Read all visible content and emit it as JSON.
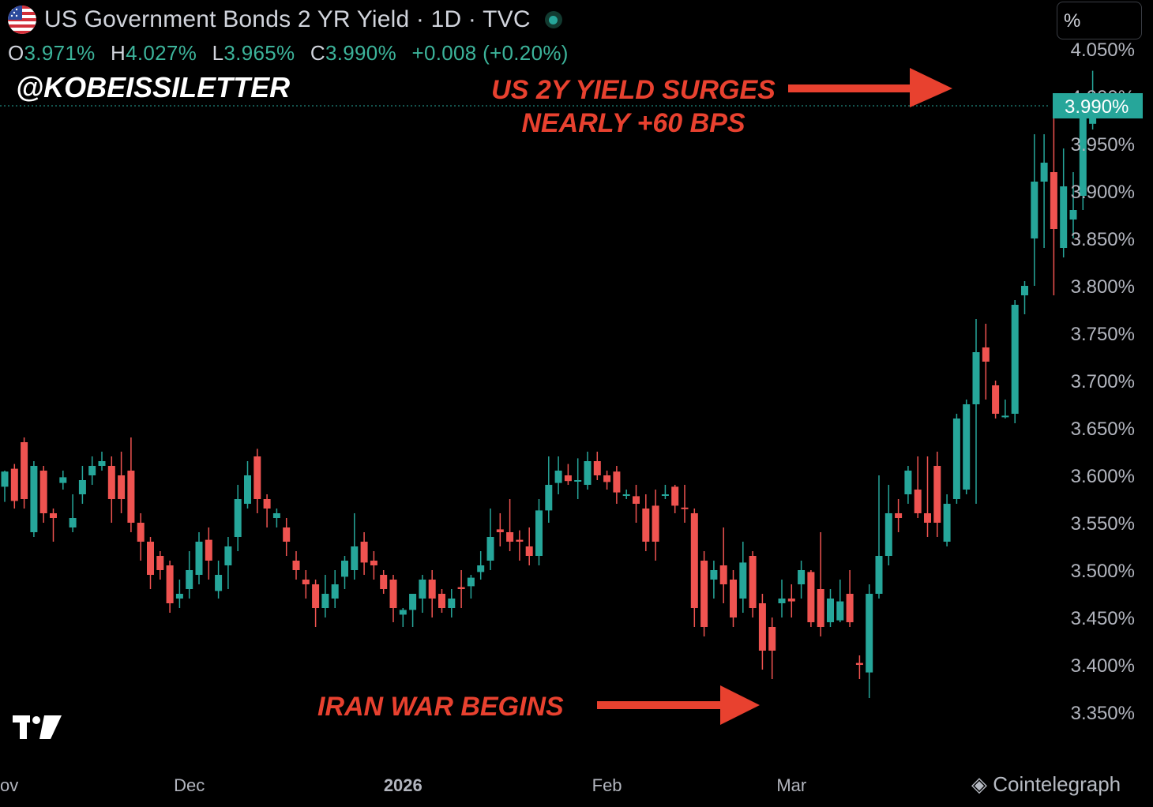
{
  "header": {
    "title": "US Government Bonds 2 YR Yield · 1D · TVC",
    "open_label": "O",
    "open": "3.971%",
    "high_label": "H",
    "high": "4.027%",
    "low_label": "L",
    "low": "3.965%",
    "close_label": "C",
    "close": "3.990%",
    "change": "+0.008 (+0.20%)"
  },
  "handle": "@KOBEISSILETTER",
  "unit_toggle": "%",
  "watermark": "Cointelegraph",
  "colors": {
    "up": "#26a69a",
    "down": "#ef5350",
    "annotation": "#e8412f",
    "price_tag": "#26a69a"
  },
  "chart_data": {
    "type": "candlestick",
    "title": "US Government Bonds 2 YR Yield · 1D · TVC",
    "y_unit": "%",
    "ylim": [
      3.325,
      4.075
    ],
    "y_ticks": [
      "4.050%",
      "4.000%",
      "3.950%",
      "3.900%",
      "3.850%",
      "3.800%",
      "3.750%",
      "3.700%",
      "3.650%",
      "3.600%",
      "3.550%",
      "3.500%",
      "3.450%",
      "3.400%",
      "3.350%"
    ],
    "y_tick_values": [
      4.05,
      4.0,
      3.95,
      3.9,
      3.85,
      3.8,
      3.75,
      3.7,
      3.65,
      3.6,
      3.55,
      3.5,
      3.45,
      3.4,
      3.35
    ],
    "x_labels": [
      {
        "label": "ov",
        "index": 0
      },
      {
        "label": "Dec",
        "index": 19
      },
      {
        "label": "2026",
        "index": 41
      },
      {
        "label": "Feb",
        "index": 62
      },
      {
        "label": "Mar",
        "index": 81
      }
    ],
    "last_price_label": "3.990%",
    "last_price": 3.99,
    "candles": [
      [
        3.588,
        3.604,
        3.572,
        3.605
      ],
      [
        3.607,
        3.573,
        3.565,
        3.612
      ],
      [
        3.635,
        3.575,
        3.565,
        3.64
      ],
      [
        3.54,
        3.61,
        3.535,
        3.615
      ],
      [
        3.605,
        3.56,
        3.55,
        3.61
      ],
      [
        3.56,
        3.555,
        3.53,
        3.565
      ],
      [
        3.592,
        3.598,
        3.585,
        3.605
      ],
      [
        3.545,
        3.555,
        3.54,
        3.58
      ],
      [
        3.58,
        3.595,
        3.57,
        3.61
      ],
      [
        3.6,
        3.61,
        3.59,
        3.62
      ],
      [
        3.61,
        3.615,
        3.605,
        3.625
      ],
      [
        3.61,
        3.575,
        3.55,
        3.62
      ],
      [
        3.6,
        3.575,
        3.56,
        3.625
      ],
      [
        3.605,
        3.55,
        3.54,
        3.64
      ],
      [
        3.55,
        3.53,
        3.51,
        3.56
      ],
      [
        3.53,
        3.495,
        3.48,
        3.535
      ],
      [
        3.515,
        3.5,
        3.49,
        3.52
      ],
      [
        3.505,
        3.465,
        3.455,
        3.51
      ],
      [
        3.47,
        3.475,
        3.46,
        3.49
      ],
      [
        3.48,
        3.5,
        3.47,
        3.52
      ],
      [
        3.495,
        3.53,
        3.485,
        3.54
      ],
      [
        3.532,
        3.51,
        3.49,
        3.545
      ],
      [
        3.478,
        3.495,
        3.47,
        3.51
      ],
      [
        3.505,
        3.525,
        3.48,
        3.535
      ],
      [
        3.535,
        3.575,
        3.52,
        3.59
      ],
      [
        3.57,
        3.6,
        3.565,
        3.615
      ],
      [
        3.62,
        3.575,
        3.56,
        3.628
      ],
      [
        3.575,
        3.565,
        3.545,
        3.58
      ],
      [
        3.555,
        3.56,
        3.545,
        3.565
      ],
      [
        3.545,
        3.53,
        3.515,
        3.555
      ],
      [
        3.51,
        3.5,
        3.49,
        3.52
      ],
      [
        3.49,
        3.485,
        3.47,
        3.5
      ],
      [
        3.485,
        3.46,
        3.44,
        3.49
      ],
      [
        3.46,
        3.475,
        3.45,
        3.495
      ],
      [
        3.47,
        3.485,
        3.46,
        3.5
      ],
      [
        3.493,
        3.51,
        3.48,
        3.515
      ],
      [
        3.5,
        3.525,
        3.49,
        3.56
      ],
      [
        3.53,
        3.508,
        3.495,
        3.54
      ],
      [
        3.51,
        3.505,
        3.49,
        3.52
      ],
      [
        3.495,
        3.48,
        3.475,
        3.5
      ],
      [
        3.49,
        3.46,
        3.445,
        3.495
      ],
      [
        3.453,
        3.458,
        3.44,
        3.46
      ],
      [
        3.458,
        3.475,
        3.44,
        3.475
      ],
      [
        3.47,
        3.49,
        3.455,
        3.495
      ],
      [
        3.49,
        3.47,
        3.45,
        3.5
      ],
      [
        3.475,
        3.46,
        3.455,
        3.48
      ],
      [
        3.46,
        3.47,
        3.45,
        3.48
      ],
      [
        3.482,
        3.48,
        3.46,
        3.5
      ],
      [
        3.483,
        3.492,
        3.47,
        3.495
      ],
      [
        3.498,
        3.505,
        3.49,
        3.52
      ],
      [
        3.51,
        3.535,
        3.5,
        3.565
      ],
      [
        3.543,
        3.54,
        3.525,
        3.56
      ],
      [
        3.54,
        3.53,
        3.52,
        3.575
      ],
      [
        3.532,
        3.53,
        3.51,
        3.542
      ],
      [
        3.525,
        3.515,
        3.505,
        3.545
      ],
      [
        3.515,
        3.563,
        3.505,
        3.575
      ],
      [
        3.563,
        3.59,
        3.55,
        3.62
      ],
      [
        3.592,
        3.605,
        3.58,
        3.62
      ],
      [
        3.6,
        3.594,
        3.59,
        3.612
      ],
      [
        3.594,
        3.595,
        3.575,
        3.618
      ],
      [
        3.59,
        3.615,
        3.585,
        3.625
      ],
      [
        3.615,
        3.6,
        3.595,
        3.625
      ],
      [
        3.6,
        3.593,
        3.585,
        3.605
      ],
      [
        3.604,
        3.582,
        3.57,
        3.61
      ],
      [
        3.58,
        3.58,
        3.575,
        3.585
      ],
      [
        3.578,
        3.57,
        3.55,
        3.59
      ],
      [
        3.565,
        3.53,
        3.52,
        3.58
      ],
      [
        3.568,
        3.53,
        3.51,
        3.585
      ],
      [
        3.58,
        3.58,
        3.575,
        3.59
      ],
      [
        3.588,
        3.568,
        3.56,
        3.59
      ],
      [
        3.566,
        3.565,
        3.55,
        3.59
      ],
      [
        3.56,
        3.46,
        3.44,
        3.565
      ],
      [
        3.51,
        3.44,
        3.43,
        3.52
      ],
      [
        3.49,
        3.5,
        3.47,
        3.51
      ],
      [
        3.505,
        3.485,
        3.465,
        3.545
      ],
      [
        3.49,
        3.45,
        3.44,
        3.5
      ],
      [
        3.47,
        3.508,
        3.455,
        3.53
      ],
      [
        3.515,
        3.46,
        3.45,
        3.52
      ],
      [
        3.465,
        3.415,
        3.395,
        3.475
      ],
      [
        3.44,
        3.415,
        3.385,
        3.45
      ],
      [
        3.465,
        3.47,
        3.45,
        3.49
      ],
      [
        3.47,
        3.467,
        3.45,
        3.485
      ],
      [
        3.485,
        3.5,
        3.47,
        3.51
      ],
      [
        3.498,
        3.445,
        3.44,
        3.5
      ],
      [
        3.48,
        3.44,
        3.43,
        3.54
      ],
      [
        3.445,
        3.47,
        3.44,
        3.48
      ],
      [
        3.447,
        3.467,
        3.445,
        3.49
      ],
      [
        3.475,
        3.445,
        3.44,
        3.5
      ],
      [
        3.402,
        3.4,
        3.385,
        3.41
      ],
      [
        3.392,
        3.475,
        3.365,
        3.485
      ],
      [
        3.475,
        3.515,
        3.47,
        3.6
      ],
      [
        3.515,
        3.56,
        3.505,
        3.59
      ],
      [
        3.56,
        3.555,
        3.54,
        3.575
      ],
      [
        3.58,
        3.605,
        3.57,
        3.61
      ],
      [
        3.585,
        3.56,
        3.555,
        3.62
      ],
      [
        3.56,
        3.55,
        3.535,
        3.62
      ],
      [
        3.61,
        3.55,
        3.535,
        3.625
      ],
      [
        3.53,
        3.57,
        3.525,
        3.58
      ],
      [
        3.575,
        3.66,
        3.57,
        3.665
      ],
      [
        3.585,
        3.675,
        3.58,
        3.68
      ],
      [
        3.675,
        3.73,
        3.57,
        3.765
      ],
      [
        3.735,
        3.72,
        3.68,
        3.76
      ],
      [
        3.695,
        3.665,
        3.66,
        3.7
      ],
      [
        3.662,
        3.663,
        3.66,
        3.68
      ],
      [
        3.665,
        3.78,
        3.655,
        3.785
      ],
      [
        3.79,
        3.8,
        3.77,
        3.805
      ],
      [
        3.85,
        3.91,
        3.8,
        3.96
      ],
      [
        3.91,
        3.93,
        3.84,
        3.96
      ],
      [
        3.92,
        3.86,
        3.79,
        4.0
      ],
      [
        3.84,
        3.905,
        3.83,
        3.945
      ],
      [
        3.87,
        3.88,
        3.85,
        3.92
      ],
      [
        3.895,
        3.98,
        3.88,
        3.99
      ],
      [
        3.971,
        3.99,
        3.965,
        4.027
      ]
    ],
    "annotations": [
      {
        "text": "US 2Y YIELD SURGES",
        "line2": "NEARLY +60 BPS"
      },
      {
        "text": "IRAN WAR BEGINS"
      }
    ]
  }
}
